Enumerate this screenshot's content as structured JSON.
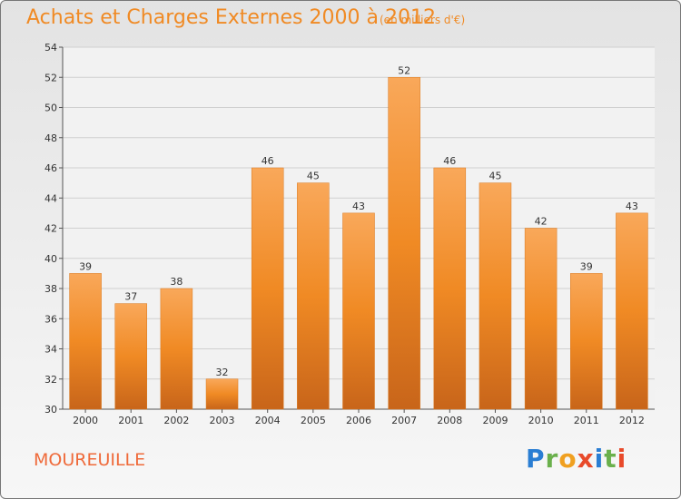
{
  "chart_data": {
    "type": "bar",
    "title": "Achats et Charges Externes 2000 à 2012",
    "subtitle": "(en milliers d'€)",
    "categories": [
      "2000",
      "2001",
      "2002",
      "2003",
      "2004",
      "2005",
      "2006",
      "2007",
      "2008",
      "2009",
      "2010",
      "2011",
      "2012"
    ],
    "values": [
      39,
      37,
      38,
      32,
      46,
      45,
      43,
      52,
      46,
      45,
      42,
      39,
      43
    ],
    "ylim": [
      30,
      54
    ],
    "yticks": [
      30,
      32,
      34,
      36,
      38,
      40,
      42,
      44,
      46,
      48,
      50,
      52,
      54
    ],
    "grid": true,
    "bar_color": "#f08a24",
    "bar_color_light": "#f9a85a",
    "bar_color_dark": "#c8651a"
  },
  "footer": {
    "commune": "MOUREUILLE"
  },
  "logo": {
    "letters": [
      "P",
      "r",
      "o",
      "x",
      "i",
      "t",
      "i"
    ],
    "colors": [
      "#2a7ed3",
      "#6ab04c",
      "#f0a020",
      "#e84a2a",
      "#2a7ed3",
      "#6ab04c",
      "#e84a2a"
    ]
  }
}
